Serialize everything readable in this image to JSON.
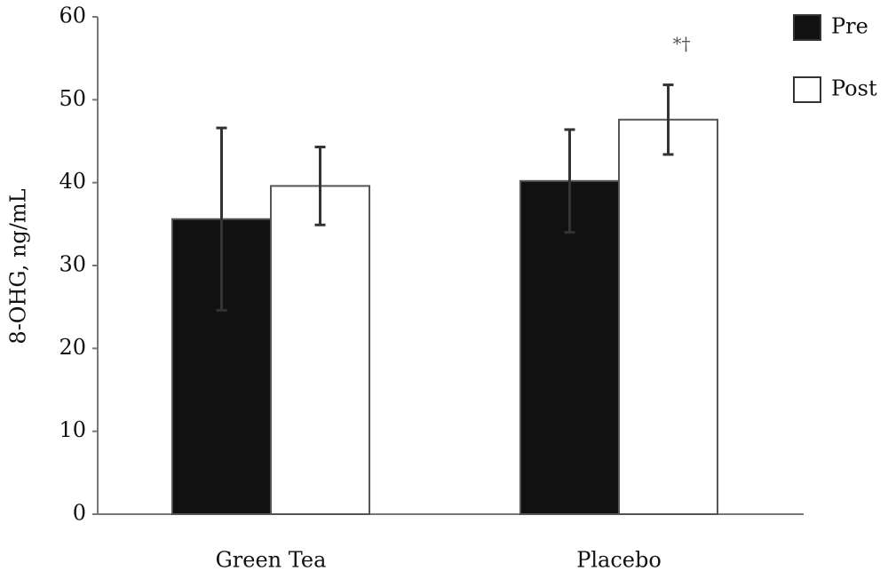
{
  "chart_data": {
    "type": "bar",
    "y_label": "8-OHG, ng/mL",
    "categories": [
      "Green Tea",
      "Placebo"
    ],
    "series": [
      {
        "name": "Pre",
        "color": "#111111",
        "values": [
          35.6,
          40.2
        ],
        "errors": [
          11.0,
          6.2
        ]
      },
      {
        "name": "Post",
        "color": "#ffffff",
        "values": [
          39.6,
          47.6
        ],
        "errors": [
          4.7,
          4.2
        ]
      }
    ],
    "annotation": "*†",
    "ylim": [
      0,
      60
    ],
    "yticks": [
      0,
      10,
      20,
      30,
      40,
      50,
      60
    ],
    "legend": "top-right"
  }
}
